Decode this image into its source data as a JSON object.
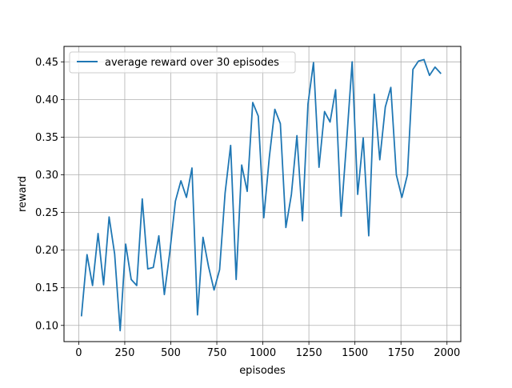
{
  "chart_data": {
    "type": "line",
    "title": "",
    "xlabel": "episodes",
    "ylabel": "reward",
    "xlim": [
      -80,
      2075
    ],
    "ylim": [
      0.0785,
      0.4705
    ],
    "xticks": [
      0,
      250,
      500,
      750,
      1000,
      1250,
      1500,
      1750,
      2000
    ],
    "yticks": [
      0.1,
      0.15,
      0.2,
      0.25,
      0.3,
      0.35,
      0.4,
      0.45
    ],
    "grid": true,
    "legend_position": "upper left",
    "series": [
      {
        "name": "average reward over 30 episodes",
        "color": "#1f77b4",
        "x": [
          15,
          45,
          75,
          105,
          135,
          165,
          195,
          225,
          255,
          285,
          315,
          345,
          375,
          405,
          435,
          465,
          495,
          525,
          555,
          585,
          615,
          645,
          675,
          705,
          735,
          765,
          795,
          825,
          855,
          885,
          915,
          945,
          975,
          1005,
          1035,
          1065,
          1095,
          1125,
          1155,
          1185,
          1215,
          1245,
          1275,
          1305,
          1335,
          1365,
          1395,
          1425,
          1455,
          1485,
          1515,
          1545,
          1575,
          1605,
          1635,
          1665,
          1695,
          1725,
          1755,
          1785,
          1815,
          1845,
          1875,
          1905,
          1935,
          1965
        ],
        "y": [
          0.113,
          0.194,
          0.153,
          0.222,
          0.154,
          0.244,
          0.195,
          0.093,
          0.208,
          0.161,
          0.153,
          0.268,
          0.175,
          0.177,
          0.219,
          0.141,
          0.198,
          0.265,
          0.292,
          0.27,
          0.309,
          0.114,
          0.217,
          0.178,
          0.147,
          0.174,
          0.276,
          0.339,
          0.161,
          0.313,
          0.278,
          0.396,
          0.378,
          0.243,
          0.323,
          0.387,
          0.368,
          0.23,
          0.274,
          0.352,
          0.239,
          0.394,
          0.449,
          0.31,
          0.384,
          0.37,
          0.413,
          0.245,
          0.345,
          0.45,
          0.274,
          0.349,
          0.219,
          0.407,
          0.32,
          0.39,
          0.416,
          0.3,
          0.27,
          0.3,
          0.44,
          0.451,
          0.453,
          0.432,
          0.443,
          0.435
        ]
      }
    ]
  }
}
